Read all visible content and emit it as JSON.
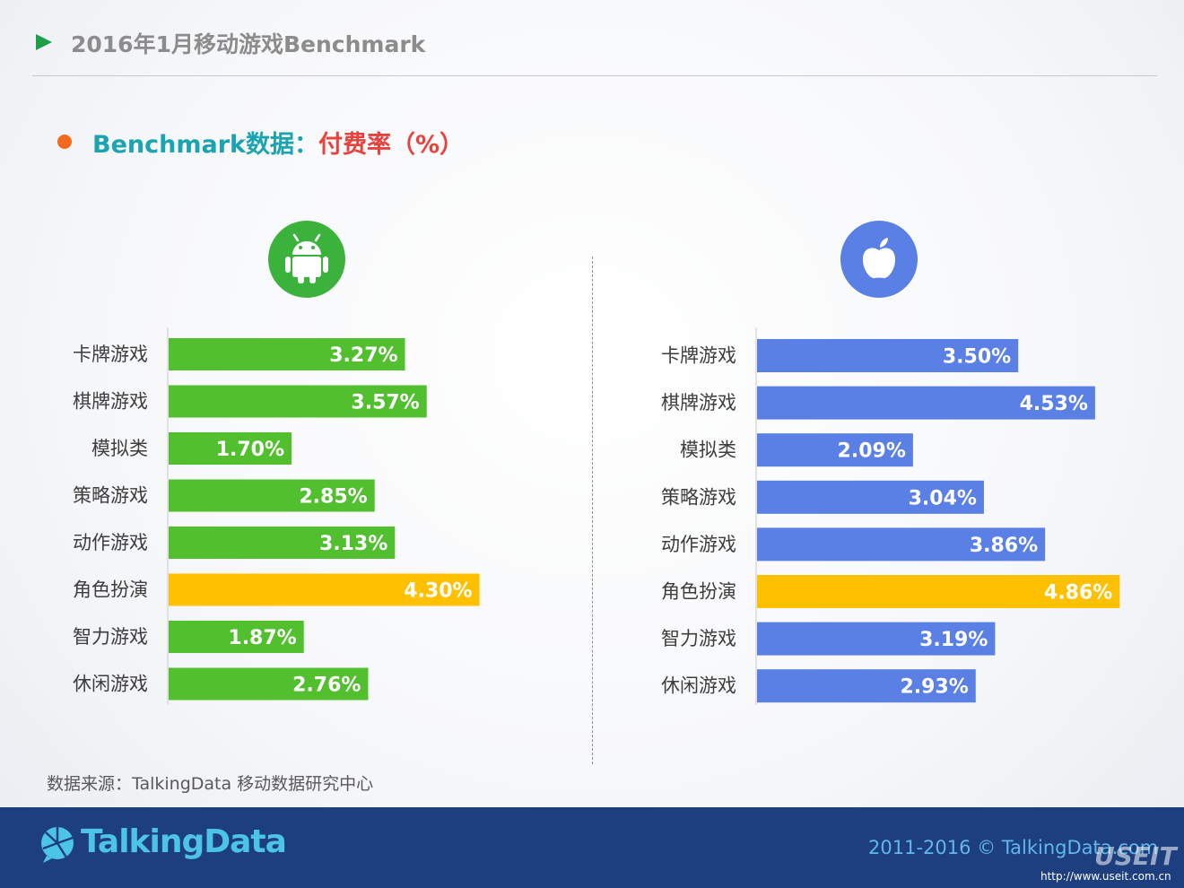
{
  "header": {
    "title": "2016年1月移动游戏Benchmark"
  },
  "subtitle": {
    "part_a": "Benchmark数据：",
    "part_b": "付费率（%）"
  },
  "icons": {
    "android": "android-icon",
    "apple": "apple-icon"
  },
  "colors": {
    "android_bar": "#52bf2f",
    "ios_bar": "#5a7fe5",
    "highlight_bar": "#ffc000"
  },
  "chart_data": [
    {
      "type": "bar",
      "orientation": "horizontal",
      "platform": "Android",
      "categories": [
        "卡牌游戏",
        "棋牌游戏",
        "模拟类",
        "策略游戏",
        "动作游戏",
        "角色扮演",
        "智力游戏",
        "休闲游戏"
      ],
      "values": [
        3.27,
        3.57,
        1.7,
        2.85,
        3.13,
        4.3,
        1.87,
        2.76
      ],
      "labels": [
        "3.27%",
        "3.57%",
        "1.70%",
        "2.85%",
        "3.13%",
        "4.30%",
        "1.87%",
        "2.76%"
      ],
      "highlight_index": 5,
      "unit": "%"
    },
    {
      "type": "bar",
      "orientation": "horizontal",
      "platform": "iOS",
      "categories": [
        "卡牌游戏",
        "棋牌游戏",
        "模拟类",
        "策略游戏",
        "动作游戏",
        "角色扮演",
        "智力游戏",
        "休闲游戏"
      ],
      "values": [
        3.5,
        4.53,
        2.09,
        3.04,
        3.86,
        4.86,
        3.19,
        2.93
      ],
      "labels": [
        "3.50%",
        "4.53%",
        "2.09%",
        "3.04%",
        "3.86%",
        "4.86%",
        "3.19%",
        "2.93%"
      ],
      "highlight_index": 5,
      "unit": "%"
    }
  ],
  "source": "数据来源：TalkingData 移动数据研究中心",
  "footer": {
    "logo": "TalkingData",
    "copyright": "2011-2016 © TalkingData.com",
    "watermark": "USEIT",
    "watermark_url": "http://www.useit.com.cn"
  }
}
